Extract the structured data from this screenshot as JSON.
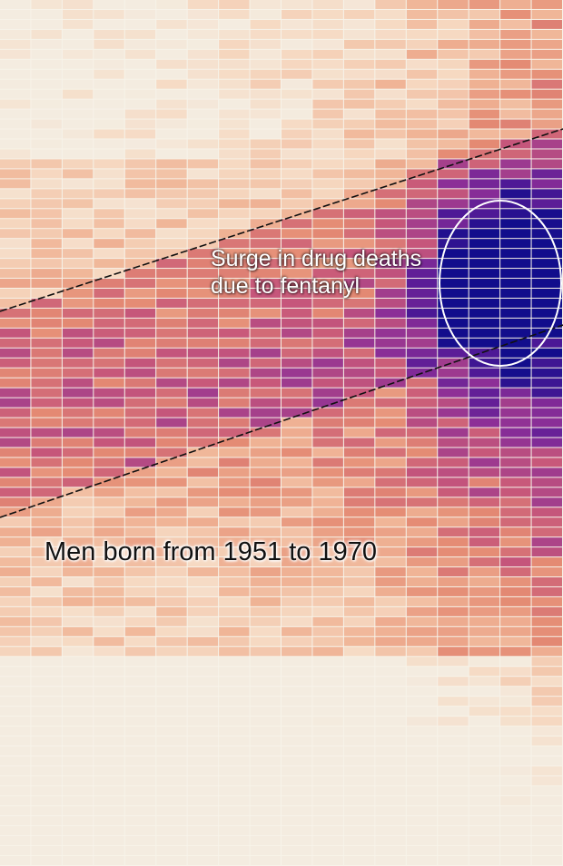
{
  "chart_data": {
    "type": "heatmap",
    "title": "",
    "xlabel": "",
    "ylabel": "",
    "grid": true,
    "colors": {
      "background": "#f7f3e9",
      "scale": [
        "#f4ece0",
        "#f6d9c2",
        "#f0b597",
        "#e48a73",
        "#c7577a",
        "#8d2f97",
        "#541a97",
        "#120d8c"
      ],
      "annotation_ellipse": "#ffffff",
      "trend_lines": "#111111"
    },
    "annotations": {
      "surge": {
        "line1": "Surge in drug deaths",
        "line2": "due to fentanyl"
      },
      "cohort": "Men born from 1951 to 1970"
    },
    "cohort_band": {
      "label": "Men born from 1951 to 1970",
      "start_year": 1951,
      "end_year": 1970
    }
  }
}
